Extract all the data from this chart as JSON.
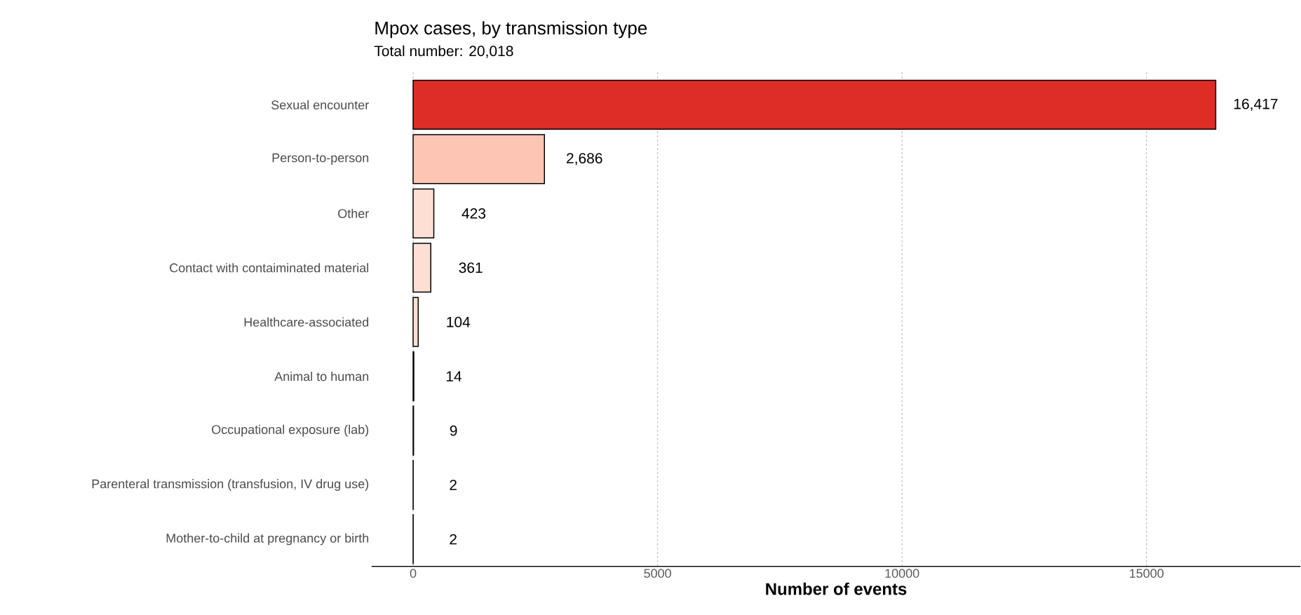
{
  "chart_data": {
    "type": "bar",
    "orientation": "horizontal",
    "title": "Mpox cases, by transmission type",
    "subtitle": "Total number: 20,018",
    "xlabel": "Number of events",
    "categories": [
      "Sexual encounter",
      "Person-to-person",
      "Other",
      "Contact with contaiminated material",
      "Healthcare-associated",
      "Animal to human",
      "Occupational exposure (lab)",
      "Parenteral transmission (transfusion, IV drug use)",
      "Mother-to-child at pregnancy or birth"
    ],
    "values": [
      16417,
      2686,
      423,
      361,
      104,
      14,
      9,
      2,
      2
    ],
    "value_labels": [
      "16,417",
      "2,686",
      "423",
      "361",
      "104",
      "14",
      "9",
      "2",
      "2"
    ],
    "colors": [
      "#de2d26",
      "#fcc5b4",
      "#fddfd3",
      "#fddfd3",
      "#fddfd3",
      "#fee5d9",
      "#fee5d9",
      "#fee5d9",
      "#fee5d9"
    ],
    "xlim": [
      -850,
      18150
    ],
    "xticks": [
      0,
      5000,
      10000,
      15000
    ],
    "grid": "x"
  }
}
